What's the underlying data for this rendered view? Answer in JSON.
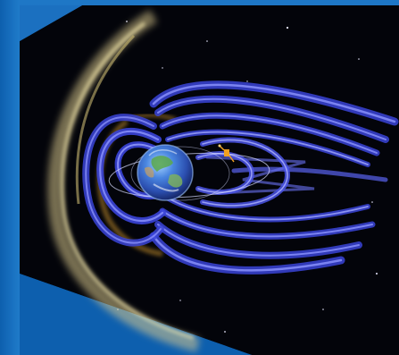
{
  "colors": {
    "background_blue": "#1a6fbf",
    "space": "#03040a",
    "field_lines": "#4b55e6",
    "bow_shock": "#d7c98a",
    "earth_ocean": "#3a6fd0",
    "satellite": "#f0a020"
  },
  "icons": {
    "earth": "earth-icon",
    "satellite": "satellite-icon"
  }
}
